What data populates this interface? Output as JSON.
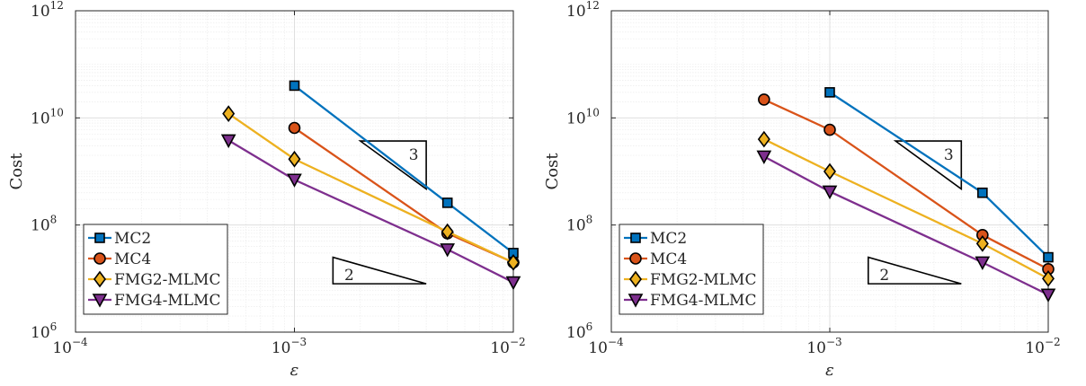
{
  "chart_data": [
    {
      "type": "line",
      "panel": "left",
      "xlabel": "ε",
      "ylabel": "Cost",
      "xscale": "log",
      "yscale": "log",
      "xlim": [
        0.0001,
        0.01
      ],
      "ylim": [
        1000000,
        1000000000000
      ],
      "grid": true,
      "legend_position": "bottom-left",
      "x_ticks": [
        {
          "value": 0.0001,
          "base": "10",
          "exp": "−4"
        },
        {
          "value": 0.001,
          "base": "10",
          "exp": "−3"
        },
        {
          "value": 0.01,
          "base": "10",
          "exp": "−2"
        }
      ],
      "y_ticks": [
        {
          "value": 1000000,
          "base": "10",
          "exp": "6"
        },
        {
          "value": 100000000,
          "base": "10",
          "exp": "8"
        },
        {
          "value": 10000000000,
          "base": "10",
          "exp": "10"
        },
        {
          "value": 1000000000000,
          "base": "10",
          "exp": "12"
        }
      ],
      "series": [
        {
          "name": "MC2",
          "color": "#0072BD",
          "marker": "square",
          "x": [
            0.001,
            0.005,
            0.01
          ],
          "y": [
            40000000000,
            260000000,
            30000000
          ]
        },
        {
          "name": "MC4",
          "color": "#D95319",
          "marker": "circle",
          "x": [
            0.001,
            0.005,
            0.01
          ],
          "y": [
            6500000000,
            70000000,
            20000000
          ]
        },
        {
          "name": "FMG2-MLMC",
          "color": "#EDB120",
          "marker": "diamond",
          "x": [
            0.0005,
            0.001,
            0.005,
            0.01
          ],
          "y": [
            12000000000,
            1700000000,
            75000000,
            20000000
          ]
        },
        {
          "name": "FMG4-MLMC",
          "color": "#7E2F8E",
          "marker": "triangle-down",
          "x": [
            0.0005,
            0.001,
            0.005,
            0.01
          ],
          "y": [
            3800000000,
            700000000,
            35000000,
            8500000
          ]
        }
      ],
      "slope_triangles": [
        {
          "label": "3",
          "orientation": "top",
          "x": [
            0.002,
            0.004
          ],
          "y": [
            3700000000,
            470000000
          ]
        },
        {
          "label": "2",
          "orientation": "bottom",
          "x": [
            0.0015,
            0.004
          ],
          "y": [
            25000000,
            8000000
          ]
        }
      ]
    },
    {
      "type": "line",
      "panel": "right",
      "xlabel": "ε",
      "ylabel": "Cost",
      "xscale": "log",
      "yscale": "log",
      "xlim": [
        0.0001,
        0.01
      ],
      "ylim": [
        1000000,
        1000000000000
      ],
      "grid": true,
      "legend_position": "bottom-left",
      "x_ticks": [
        {
          "value": 0.0001,
          "base": "10",
          "exp": "−4"
        },
        {
          "value": 0.001,
          "base": "10",
          "exp": "−3"
        },
        {
          "value": 0.01,
          "base": "10",
          "exp": "−2"
        }
      ],
      "y_ticks": [
        {
          "value": 1000000,
          "base": "10",
          "exp": "6"
        },
        {
          "value": 100000000,
          "base": "10",
          "exp": "8"
        },
        {
          "value": 10000000000,
          "base": "10",
          "exp": "10"
        },
        {
          "value": 1000000000000,
          "base": "10",
          "exp": "12"
        }
      ],
      "series": [
        {
          "name": "MC2",
          "color": "#0072BD",
          "marker": "square",
          "x": [
            0.001,
            0.005,
            0.01
          ],
          "y": [
            30000000000,
            400000000,
            25000000
          ]
        },
        {
          "name": "MC4",
          "color": "#D95319",
          "marker": "circle",
          "x": [
            0.0005,
            0.001,
            0.005,
            0.01
          ],
          "y": [
            22000000000,
            6000000000,
            65000000,
            15000000
          ]
        },
        {
          "name": "FMG2-MLMC",
          "color": "#EDB120",
          "marker": "diamond",
          "x": [
            0.0005,
            0.001,
            0.005,
            0.01
          ],
          "y": [
            4000000000,
            1000000000,
            45000000,
            10000000
          ]
        },
        {
          "name": "FMG4-MLMC",
          "color": "#7E2F8E",
          "marker": "triangle-down",
          "x": [
            0.0005,
            0.001,
            0.005,
            0.01
          ],
          "y": [
            1900000000,
            420000000,
            20000000,
            5000000
          ]
        }
      ],
      "slope_triangles": [
        {
          "label": "3",
          "orientation": "top",
          "x": [
            0.002,
            0.004
          ],
          "y": [
            3700000000,
            470000000
          ]
        },
        {
          "label": "2",
          "orientation": "bottom",
          "x": [
            0.0015,
            0.004
          ],
          "y": [
            25000000,
            8000000
          ]
        }
      ]
    }
  ]
}
